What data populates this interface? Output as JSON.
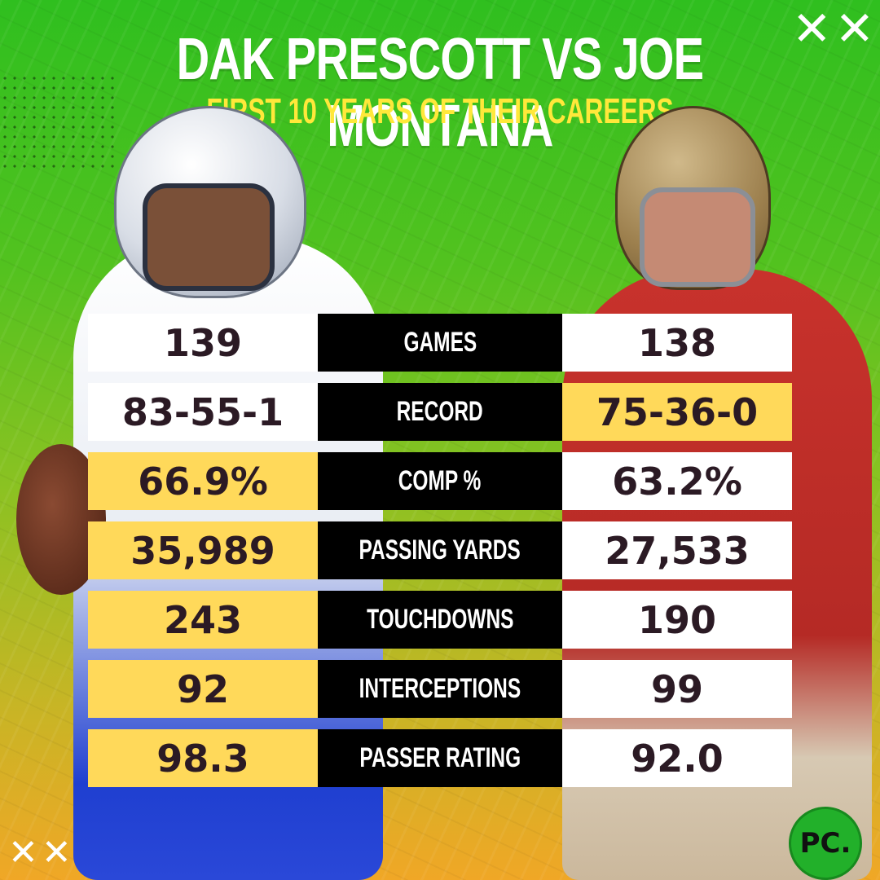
{
  "title": "DAK PRESCOTT VS JOE MONTANA",
  "subtitle": "FIRST 10 YEARS OF THEIR CAREERS",
  "decor": {
    "top_right_marks": "✕✕",
    "bottom_left_marks": "✕✕✕"
  },
  "colors": {
    "highlight": "#ffd95a",
    "label_bg": "#000000",
    "title": "#ffffff",
    "subtitle": "#ffe83a"
  },
  "stats": [
    {
      "label": "GAMES",
      "left": "139",
      "right": "138",
      "highlight": "none"
    },
    {
      "label": "RECORD",
      "left": "83-55-1",
      "right": "75-36-0",
      "highlight": "right"
    },
    {
      "label": "COMP %",
      "left": "66.9%",
      "right": "63.2%",
      "highlight": "left"
    },
    {
      "label": "PASSING YARDS",
      "left": "35,989",
      "right": "27,533",
      "highlight": "left"
    },
    {
      "label": "TOUCHDOWNS",
      "left": "243",
      "right": "190",
      "highlight": "left"
    },
    {
      "label": "INTERCEPTIONS",
      "left": "92",
      "right": "99",
      "highlight": "left"
    },
    {
      "label": "PASSER RATING",
      "left": "98.3",
      "right": "92.0",
      "highlight": "left"
    }
  ],
  "logo": "PC."
}
